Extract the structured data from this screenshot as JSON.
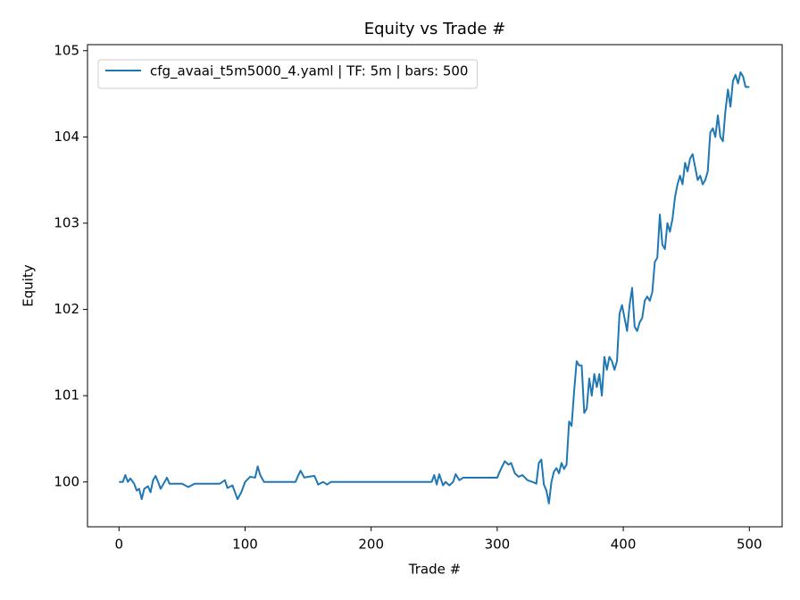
{
  "chart_data": {
    "type": "line",
    "title": "Equity vs Trade #",
    "x_label": "Trade #",
    "y_label": "Equity",
    "xlim": [
      -25,
      526
    ],
    "ylim": [
      99.48,
      105.07
    ],
    "xticks": [
      0,
      100,
      200,
      300,
      400,
      500
    ],
    "yticks": [
      100,
      101,
      102,
      103,
      104,
      105
    ],
    "legend": "upper left",
    "x": [
      0,
      3,
      5,
      7,
      9,
      12,
      14,
      16,
      18,
      20,
      23,
      25,
      27,
      29,
      31,
      33,
      35,
      38,
      40,
      50,
      55,
      60,
      80,
      84,
      86,
      90,
      94,
      97,
      100,
      104,
      108,
      110,
      112,
      115,
      120,
      140,
      142,
      144,
      147,
      150,
      155,
      158,
      162,
      165,
      168,
      200,
      248,
      250,
      252,
      254,
      257,
      259,
      262,
      265,
      267,
      270,
      273,
      300,
      302,
      306,
      309,
      311,
      314,
      317,
      320,
      324,
      328,
      331,
      333,
      335,
      337,
      339,
      341,
      343,
      345,
      347,
      349,
      351,
      353,
      355,
      357,
      359,
      361,
      363,
      365,
      367,
      369,
      371,
      373,
      375,
      377,
      379,
      381,
      383,
      385,
      387,
      389,
      391,
      393,
      395,
      397,
      399,
      401,
      403,
      405,
      407,
      409,
      411,
      413,
      415,
      417,
      419,
      421,
      423,
      425,
      427,
      429,
      431,
      433,
      435,
      437,
      439,
      441,
      443,
      445,
      447,
      449,
      451,
      453,
      455,
      457,
      459,
      461,
      463,
      465,
      467,
      469,
      471,
      473,
      475,
      477,
      479,
      481,
      483,
      485,
      487,
      489,
      491,
      493,
      495,
      497,
      500
    ],
    "series": [
      {
        "name": "cfg_avaai_t5m5000_4.yaml | TF: 5m | bars: 500",
        "color": "#1f77b4",
        "values": [
          100.0,
          100.0,
          100.08,
          100.0,
          100.04,
          99.98,
          99.9,
          99.92,
          99.8,
          99.92,
          99.95,
          99.88,
          100.02,
          100.07,
          100.0,
          99.92,
          99.97,
          100.05,
          99.98,
          99.98,
          99.94,
          99.98,
          99.98,
          100.02,
          99.93,
          99.96,
          99.8,
          99.88,
          100.0,
          100.06,
          100.05,
          100.18,
          100.08,
          100.0,
          100.0,
          100.0,
          100.07,
          100.13,
          100.05,
          100.06,
          100.07,
          99.97,
          100.0,
          99.97,
          100.0,
          100.0,
          100.0,
          100.08,
          99.97,
          100.09,
          99.96,
          100.0,
          99.96,
          100.0,
          100.09,
          100.02,
          100.05,
          100.05,
          100.12,
          100.24,
          100.2,
          100.22,
          100.1,
          100.06,
          100.08,
          100.02,
          100.0,
          99.98,
          100.22,
          100.26,
          99.97,
          99.9,
          99.75,
          100.0,
          100.12,
          100.16,
          100.1,
          100.22,
          100.15,
          100.2,
          100.7,
          100.65,
          101.05,
          101.4,
          101.35,
          101.35,
          100.8,
          100.85,
          101.2,
          101.0,
          101.25,
          101.1,
          101.25,
          101.0,
          101.45,
          101.3,
          101.45,
          101.4,
          101.3,
          101.4,
          101.95,
          102.05,
          101.9,
          101.75,
          102.05,
          102.25,
          101.8,
          101.75,
          101.85,
          101.9,
          102.1,
          102.15,
          102.1,
          102.2,
          102.55,
          102.6,
          103.1,
          102.75,
          102.7,
          103.0,
          102.9,
          103.05,
          103.3,
          103.45,
          103.55,
          103.45,
          103.7,
          103.6,
          103.75,
          103.8,
          103.65,
          103.5,
          103.55,
          103.45,
          103.5,
          103.6,
          104.05,
          104.1,
          104.0,
          104.25,
          104.0,
          103.95,
          104.3,
          104.55,
          104.35,
          104.65,
          104.72,
          104.62,
          104.75,
          104.7,
          104.58,
          104.58
        ]
      }
    ]
  }
}
